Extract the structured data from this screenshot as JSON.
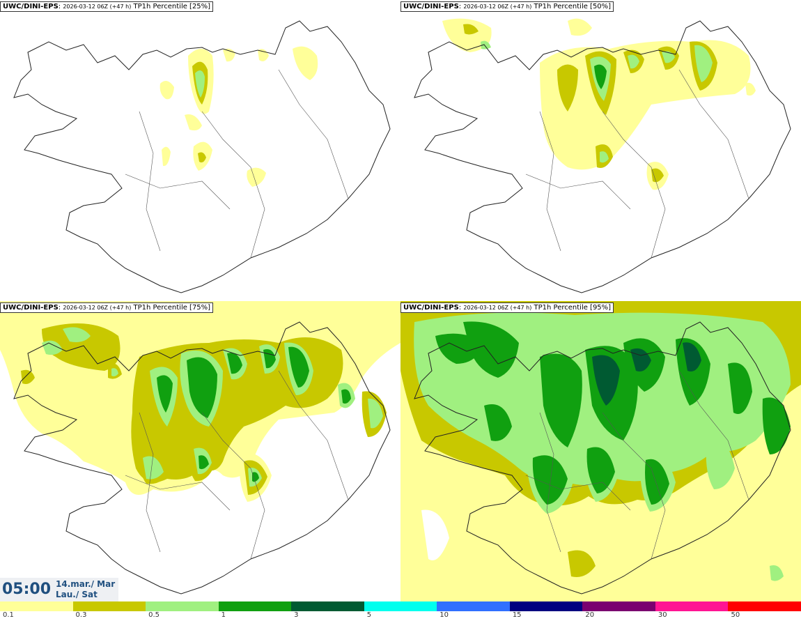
{
  "panels": [
    {
      "model": "UWC/DINI-EPS",
      "run": "2026-03-12 06Z",
      "lead": "(+47 h)",
      "field": "TP1h Percentile [25%]"
    },
    {
      "model": "UWC/DINI-EPS",
      "run": "2026-03-12 06Z",
      "lead": "(+47 h)",
      "field": "TP1h Percentile [50%]"
    },
    {
      "model": "UWC/DINI-EPS",
      "run": "2026-03-12 06Z",
      "lead": "(+47 h)",
      "field": "TP1h Percentile [75%]"
    },
    {
      "model": "UWC/DINI-EPS",
      "run": "2026-03-12 06Z",
      "lead": "(+47 h)",
      "field": "TP1h Percentile [95%]"
    }
  ],
  "valid_time": {
    "time": "05:00",
    "date_line1": "14.mar./ Mar",
    "date_line2": "Lau./ Sat"
  },
  "colorbar": {
    "colors": [
      "#ffff99",
      "#c8c800",
      "#a0f080",
      "#10a010",
      "#005a32",
      "#00ffee",
      "#3070ff",
      "#000080",
      "#7a0070",
      "#ff1493",
      "#ff0000"
    ],
    "labels": [
      "0.1",
      "0.3",
      "0.5",
      "1",
      "3",
      "5",
      "10",
      "15",
      "20",
      "30",
      "50"
    ]
  },
  "icons": [
    "iceland-coastline-map"
  ]
}
